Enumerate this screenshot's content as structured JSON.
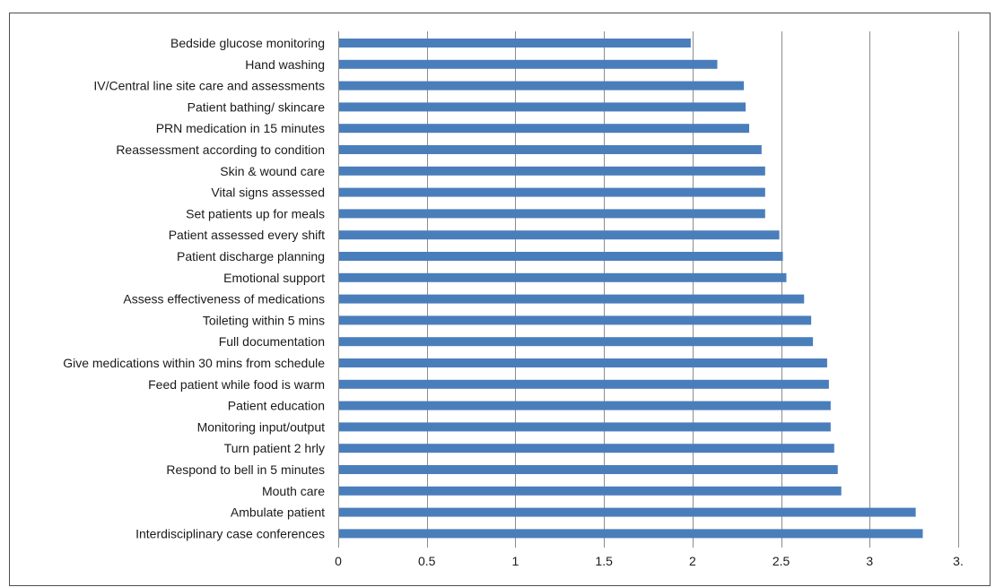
{
  "chart_data": {
    "type": "bar",
    "orientation": "horizontal",
    "categories": [
      "Bedside glucose monitoring",
      "Hand washing",
      "IV/Central line site care and assessments",
      "Patient bathing/ skincare",
      "PRN medication in 15 minutes",
      "Reassessment according to condition",
      "Skin & wound care",
      "Vital signs assessed",
      "Set patients up for meals",
      "Patient assessed every shift",
      "Patient discharge planning",
      "Emotional support",
      "Assess effectiveness of medications",
      "Toileting within 5 mins",
      "Full documentation",
      "Give medications within 30 mins from schedule",
      "Feed patient while food is warm",
      "Patient education",
      "Monitoring input/output",
      "Turn patient 2 hrly",
      "Respond to bell in 5 minutes",
      "Mouth care",
      "Ambulate patient",
      "Interdisciplinary case conferences"
    ],
    "values": [
      1.99,
      2.14,
      2.29,
      2.3,
      2.32,
      2.39,
      2.41,
      2.41,
      2.41,
      2.49,
      2.51,
      2.53,
      2.63,
      2.67,
      2.68,
      2.76,
      2.77,
      2.78,
      2.78,
      2.8,
      2.82,
      2.84,
      3.26,
      3.3
    ],
    "xticks": [
      "0",
      "0.5",
      "1",
      "1.5",
      "2",
      "2.5",
      "3",
      "3."
    ],
    "xlim": [
      0,
      3.5
    ],
    "grid": true,
    "bar_color": "#4a7ebb",
    "title": "",
    "xlabel": "",
    "ylabel": ""
  }
}
